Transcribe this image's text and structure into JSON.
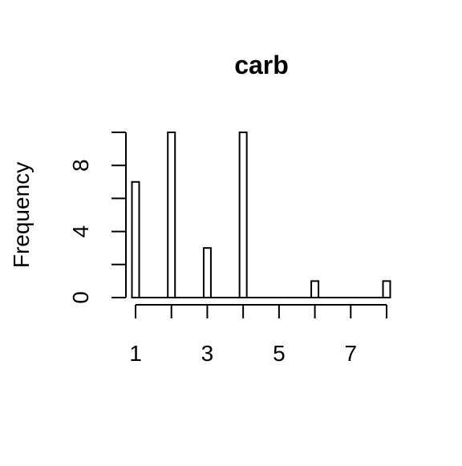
{
  "chart_data": {
    "type": "bar",
    "title": "carb",
    "xlabel": "",
    "ylabel": "Frequency",
    "categories": [
      1,
      2,
      3,
      4,
      6,
      8
    ],
    "values": [
      7,
      10,
      3,
      10,
      1,
      1
    ],
    "xlim": [
      1,
      8
    ],
    "ylim": [
      0,
      10
    ],
    "x_ticks": [
      1,
      3,
      5,
      7
    ],
    "y_ticks": [
      0,
      4,
      8
    ],
    "y_minor_ticks": [
      2,
      6,
      10
    ],
    "bar_fill": "#ffffff",
    "bar_stroke": "#000000",
    "grid": false,
    "legend": "none"
  }
}
